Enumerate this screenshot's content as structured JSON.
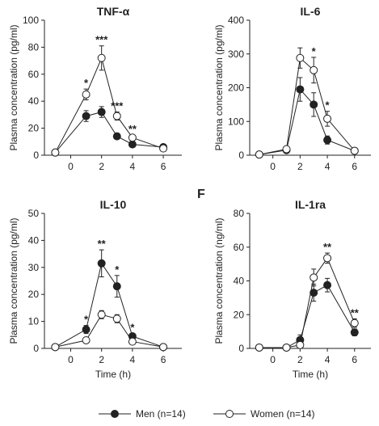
{
  "panel_letter": "F",
  "legend": {
    "men": "Men (n=14)",
    "women": "Women (n=14)"
  },
  "colors": {
    "men": "#222222",
    "women": "#ffffff",
    "axis": "#222222"
  },
  "chart_data": [
    {
      "type": "line",
      "title": "TNF-α",
      "ylabel": "Plasma concentration (pg/ml)",
      "xlabel": "",
      "ylim": [
        0,
        100
      ],
      "yticks": [
        0,
        20,
        40,
        60,
        80,
        100
      ],
      "xticks": [
        0,
        2,
        4,
        6
      ],
      "series": [
        {
          "name": "Men (n=14)",
          "x": [
            -1,
            1,
            2,
            3,
            4,
            6
          ],
          "y": [
            2,
            29,
            32,
            14,
            8,
            6
          ],
          "err": [
            1,
            4,
            4,
            2,
            2,
            1
          ]
        },
        {
          "name": "Women (n=14)",
          "x": [
            -1,
            1,
            2,
            3,
            4,
            6
          ],
          "y": [
            2,
            45,
            72,
            29,
            13,
            5
          ],
          "err": [
            1,
            4,
            9,
            3,
            2,
            1
          ]
        }
      ],
      "annotations": [
        {
          "x": 1,
          "text": "*"
        },
        {
          "x": 2,
          "text": "***"
        },
        {
          "x": 3,
          "text": "***"
        },
        {
          "x": 4,
          "text": "**"
        }
      ]
    },
    {
      "type": "line",
      "title": "IL-6",
      "ylabel": "Plasma concentration (pg/ml)",
      "xlabel": "",
      "ylim": [
        0,
        400
      ],
      "yticks": [
        0,
        100,
        200,
        300,
        400
      ],
      "xticks": [
        0,
        2,
        4,
        6
      ],
      "series": [
        {
          "name": "Men (n=14)",
          "x": [
            -1,
            1,
            2,
            3,
            4,
            6
          ],
          "y": [
            2,
            15,
            195,
            150,
            45,
            13
          ],
          "err": [
            1,
            5,
            35,
            35,
            12,
            4
          ]
        },
        {
          "name": "Women (n=14)",
          "x": [
            -1,
            1,
            2,
            3,
            4,
            6
          ],
          "y": [
            2,
            18,
            288,
            252,
            108,
            13
          ],
          "err": [
            1,
            5,
            30,
            38,
            22,
            4
          ]
        }
      ],
      "annotations": [
        {
          "x": 3,
          "text": "*"
        },
        {
          "x": 4,
          "text": "*"
        }
      ]
    },
    {
      "type": "line",
      "title": "IL-10",
      "ylabel": "Plasma concentration (pg/ml)",
      "xlabel": "Time (h)",
      "ylim": [
        0,
        50
      ],
      "yticks": [
        0,
        10,
        20,
        30,
        40,
        50
      ],
      "xticks": [
        0,
        2,
        4,
        6
      ],
      "series": [
        {
          "name": "Men (n=14)",
          "x": [
            -1,
            1,
            2,
            3,
            4,
            6
          ],
          "y": [
            0.5,
            7,
            31.5,
            23,
            4.5,
            0.5
          ],
          "err": [
            0.3,
            1.5,
            5,
            4,
            1,
            0.3
          ]
        },
        {
          "name": "Women (n=14)",
          "x": [
            -1,
            1,
            2,
            3,
            4,
            6
          ],
          "y": [
            0.5,
            3,
            12.5,
            11,
            2.5,
            0.5
          ],
          "err": [
            0.3,
            1,
            1.5,
            1.5,
            0.7,
            0.3
          ]
        }
      ],
      "annotations": [
        {
          "x": 1,
          "text": "*"
        },
        {
          "x": 2,
          "text": "**"
        },
        {
          "x": 3,
          "text": "*"
        },
        {
          "x": 4,
          "text": "*"
        }
      ]
    },
    {
      "type": "line",
      "title": "IL-1ra",
      "ylabel": "Plasma concentration (ng/ml)",
      "xlabel": "Time (h)",
      "ylim": [
        0,
        80
      ],
      "yticks": [
        0,
        20,
        40,
        60,
        80
      ],
      "xticks": [
        0,
        2,
        4,
        6
      ],
      "series": [
        {
          "name": "Men (n=14)",
          "x": [
            -1,
            1,
            2,
            3,
            4,
            6
          ],
          "y": [
            0.5,
            0.5,
            5,
            33,
            37.5,
            9.5
          ],
          "err": [
            0.3,
            0.3,
            3,
            5,
            4,
            2
          ]
        },
        {
          "name": "Women (n=14)",
          "x": [
            -1,
            1,
            2,
            3,
            4,
            6
          ],
          "y": [
            0.5,
            0.5,
            2,
            42,
            53.5,
            15
          ],
          "err": [
            0.3,
            0.3,
            1,
            5,
            3,
            2.5
          ]
        }
      ],
      "annotations": [
        {
          "x": 4,
          "text": "**"
        },
        {
          "x": 6,
          "text": "**"
        }
      ]
    }
  ]
}
